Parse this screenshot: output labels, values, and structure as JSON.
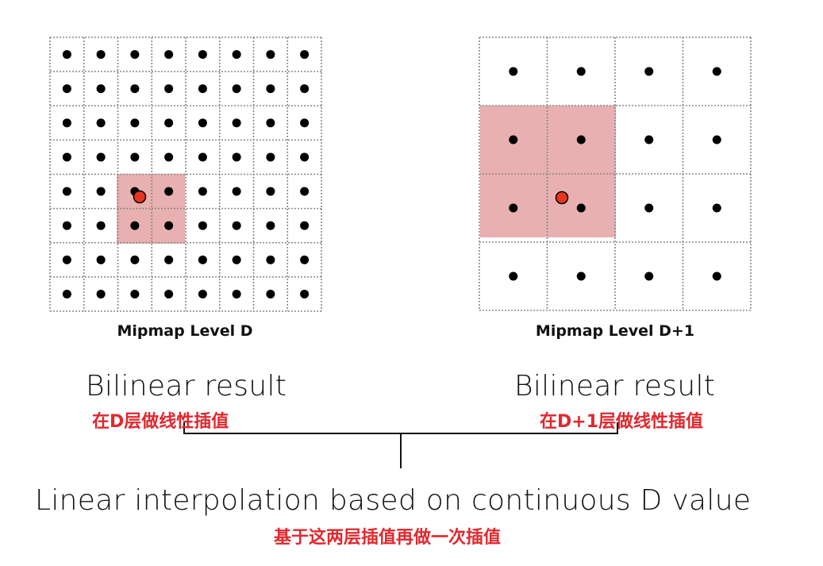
{
  "left": {
    "caption": "Mipmap Level D",
    "result": "Bilinear result",
    "note": "在D层做线性插值"
  },
  "right": {
    "caption": "Mipmap Level D+1",
    "result": "Bilinear result",
    "note": "在D+1层做线性插值"
  },
  "bottom": {
    "text": "Linear interpolation based on continuous D value",
    "note": "基于这两层插值再做一次插值"
  },
  "colors": {
    "highlight": "#e8b0b0",
    "sample_point": "#e8361e",
    "note_text": "#e0282e"
  }
}
